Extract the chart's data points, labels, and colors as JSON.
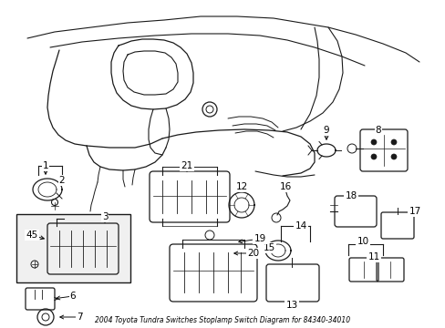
{
  "title": "2004 Toyota Tundra Switches Stoplamp Switch Diagram for 84340-34010",
  "background_color": "#ffffff",
  "line_color": "#1a1a1a",
  "fig_width": 4.89,
  "fig_height": 3.6,
  "dpi": 100,
  "label_fontsize": 7.5,
  "title_fontsize": 5.5
}
